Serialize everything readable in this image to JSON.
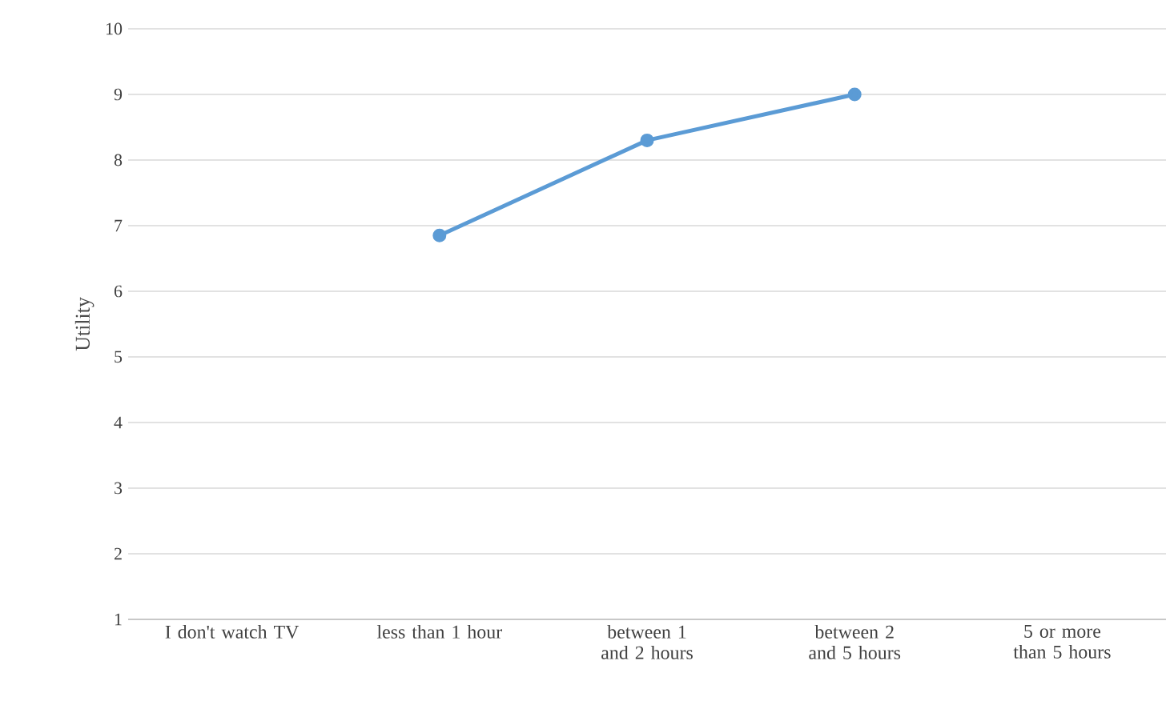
{
  "chart_data": {
    "type": "line",
    "ylabel": "Utility",
    "categories": [
      "I don't watch TV",
      "less than 1 hour",
      "between 1 and 2 hours",
      "between 2 and 5 hours",
      "5 or more than 5 hours"
    ],
    "series": [
      {
        "color": "#5b9bd5",
        "values": [
          null,
          6.85,
          8.3,
          9.0,
          null
        ]
      }
    ],
    "ylim": [
      1,
      10
    ],
    "yticks": [
      1,
      2,
      3,
      4,
      5,
      6,
      7,
      8,
      9,
      10
    ],
    "grid": "y",
    "legend": false,
    "marker": "circle",
    "line_style": "solid"
  }
}
